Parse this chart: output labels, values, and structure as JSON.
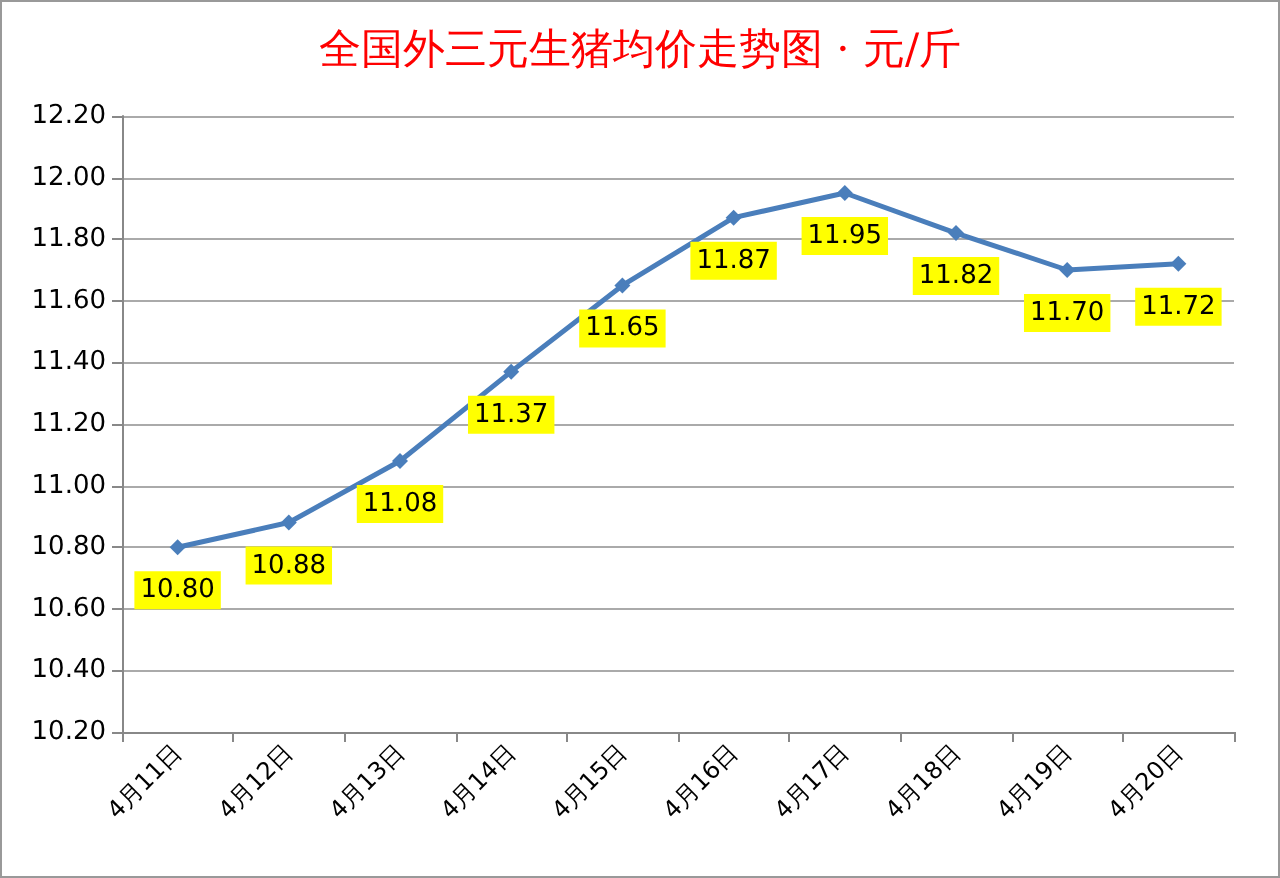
{
  "chart_data": {
    "type": "line",
    "title": "全国外三元生猪均价走势图 · 元/斤",
    "categories": [
      "4月11日",
      "4月12日",
      "4月13日",
      "4月14日",
      "4月15日",
      "4月16日",
      "4月17日",
      "4月18日",
      "4月19日",
      "4月20日"
    ],
    "series": [
      {
        "color": "#4a7ebb",
        "values": [
          10.8,
          10.88,
          11.08,
          11.37,
          11.65,
          11.87,
          11.95,
          11.82,
          11.7,
          11.72
        ],
        "value_labels": [
          "10.80",
          "10.88",
          "11.08",
          "11.37",
          "11.65",
          "11.87",
          "11.95",
          "11.82",
          "11.70",
          "11.72"
        ]
      }
    ],
    "marker": "diamond",
    "grid": "y",
    "ylim": [
      10.2,
      12.2
    ],
    "yticks": [
      {
        "value": 10.2,
        "label": "10.20"
      },
      {
        "value": 10.4,
        "label": "10.40"
      },
      {
        "value": 10.6,
        "label": "10.60"
      },
      {
        "value": 10.8,
        "label": "10.80"
      },
      {
        "value": 11.0,
        "label": "11.00"
      },
      {
        "value": 11.2,
        "label": "11.20"
      },
      {
        "value": 11.4,
        "label": "11.40"
      },
      {
        "value": 11.6,
        "label": "11.60"
      },
      {
        "value": 11.8,
        "label": "11.80"
      },
      {
        "value": 12.0,
        "label": "12.00"
      },
      {
        "value": 12.2,
        "label": "12.20"
      }
    ]
  }
}
